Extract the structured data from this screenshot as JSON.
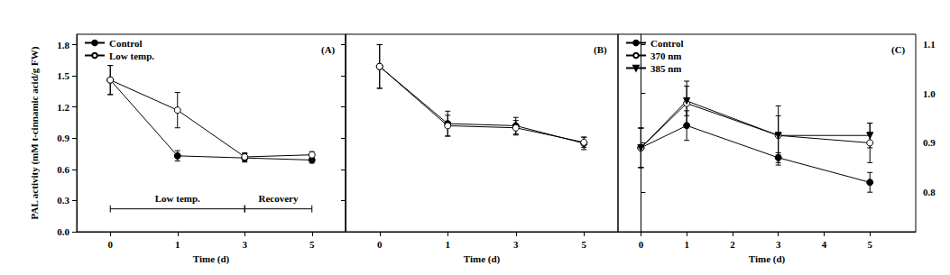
{
  "chart_data": [
    {
      "type": "line",
      "title": "(A)",
      "x_label": "Time (d)",
      "y_label": "PAL activity (mM t-cinnamic acid/g FW)",
      "categories": [
        "0",
        "1",
        "3",
        "5"
      ],
      "ylim": [
        0,
        1.9
      ],
      "yticks": [
        {
          "value": 0,
          "label": "0.0"
        },
        0.3,
        0.6,
        0.9,
        1.2,
        1.5,
        1.8
      ],
      "legend": "upper left",
      "grid": false,
      "series": [
        {
          "name": "Control",
          "color": "#000000",
          "marker": "circle",
          "line_style": "solid",
          "values": [
            1.46,
            0.73,
            0.71,
            0.69
          ],
          "errors": [
            0.14,
            0.05,
            0.04,
            0.03
          ]
        },
        {
          "name": "Low temp.",
          "color": "#000000",
          "marker": "open_circle",
          "line_style": "solid",
          "values": [
            1.46,
            1.17,
            0.72,
            0.74
          ],
          "errors": [
            0.14,
            0.17,
            0.04,
            0.03
          ]
        }
      ],
      "annotations": [
        {
          "text": "Low temp.",
          "from": "0",
          "to": "3",
          "y": 0.22
        },
        {
          "text": "Recovery",
          "from": "3",
          "to": "5",
          "y": 0.22
        }
      ]
    },
    {
      "type": "line",
      "title": "(B)",
      "x_label": "Time (d)",
      "categories": [
        "0",
        "1",
        "3",
        "5"
      ],
      "ylim": [
        0,
        1.9
      ],
      "yticks": [
        0,
        0.3,
        0.6,
        0.9,
        1.2,
        1.5,
        1.8
      ],
      "tick_labels": "x",
      "grid": false,
      "series": [
        {
          "color": "#000000",
          "marker": "circle",
          "line_style": "solid",
          "values": [
            1.59,
            1.04,
            1.02,
            0.85
          ],
          "errors": [
            0.21,
            0.12,
            0.08,
            0.06
          ]
        },
        {
          "color": "#000000",
          "marker": "open_circle",
          "line_style": "solid",
          "values": [
            1.59,
            1.02,
            1.0,
            0.86
          ],
          "errors": [
            0.21,
            0.1,
            0.07,
            0.05
          ]
        }
      ]
    },
    {
      "type": "line",
      "title": "(C)",
      "x_label": "Time (d)",
      "x": [
        0,
        1,
        3,
        5
      ],
      "xlim": [
        -0.5,
        6
      ],
      "xticks": [
        0,
        1,
        2,
        3,
        4,
        5
      ],
      "y2lim": [
        0.72,
        1.12
      ],
      "y2ticks": [
        0.8,
        0.9,
        {
          "value": 1,
          "label": "1.0"
        },
        1.1
      ],
      "legend": "upper left",
      "grid": false,
      "series": [
        {
          "name": "Control",
          "axis": "y2",
          "color": "#000000",
          "marker": "circle",
          "line_style": "solid",
          "values": [
            0.89,
            0.935,
            0.87,
            0.82
          ],
          "errors": [
            0.04,
            0.03,
            0.01,
            0.02
          ]
        },
        {
          "name": "370 nm",
          "axis": "y2",
          "color": "#000000",
          "marker": "open_circle",
          "line_style": "solid",
          "values": [
            0.89,
            0.98,
            0.915,
            0.9
          ],
          "errors": [
            0.04,
            0.045,
            0.04,
            0.04
          ]
        },
        {
          "name": "385 nm",
          "axis": "y2",
          "color": "#000000",
          "marker": "triangle_down",
          "line_style": "solid",
          "values": [
            0.89,
            0.985,
            0.915,
            0.915
          ],
          "errors": [
            0.04,
            0.03,
            0.06,
            0.025
          ]
        }
      ]
    }
  ]
}
